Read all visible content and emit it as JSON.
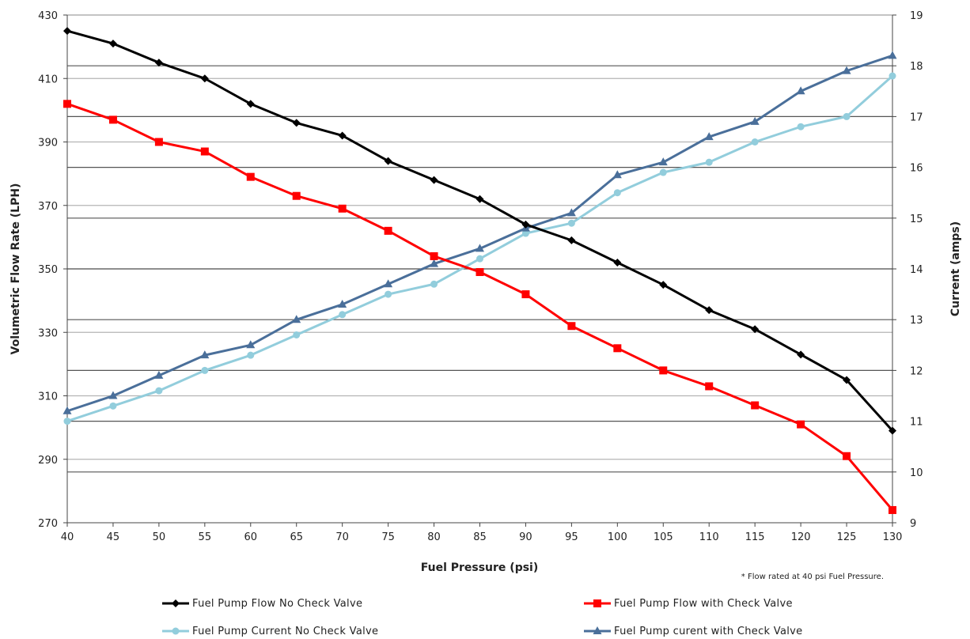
{
  "chart_data": {
    "type": "line",
    "xlabel": "Fuel Pressure (psi)",
    "ylabel_left": "Volumetric Flow Rate (LPH)",
    "ylabel_right": "Current (amps)",
    "xlim": [
      40,
      130
    ],
    "x_ticks": [
      40,
      45,
      50,
      55,
      60,
      65,
      70,
      75,
      80,
      85,
      90,
      95,
      100,
      105,
      110,
      115,
      120,
      125,
      130
    ],
    "ylim_left": [
      270,
      430
    ],
    "y_ticks_left": [
      270,
      290,
      310,
      330,
      350,
      370,
      390,
      410,
      430
    ],
    "ylim_right": [
      9,
      19
    ],
    "y_ticks_right": [
      9,
      10,
      11,
      12,
      13,
      14,
      15,
      16,
      17,
      18,
      19
    ],
    "grid": true,
    "legend_position": "bottom",
    "note": "* Flow rated at 40 psi Fuel Pressure.",
    "x": [
      40,
      45,
      50,
      55,
      60,
      65,
      70,
      75,
      80,
      85,
      90,
      95,
      100,
      105,
      110,
      115,
      120,
      125,
      130
    ],
    "series": [
      {
        "name": "Fuel Pump Flow No Check Valve",
        "axis": "left",
        "color": "#000000",
        "marker": "diamond",
        "values": [
          425,
          421,
          415,
          410,
          402,
          396,
          392,
          384,
          378,
          372,
          364,
          359,
          352,
          345,
          337,
          331,
          323,
          315,
          299
        ]
      },
      {
        "name": "Fuel Pump Flow with Check Valve",
        "axis": "left",
        "color": "#ff0000",
        "marker": "square",
        "values": [
          402,
          397,
          390,
          387,
          379,
          373,
          369,
          362,
          354,
          349,
          342,
          332,
          325,
          318,
          313,
          307,
          301,
          291,
          274
        ]
      },
      {
        "name": "Fuel Pump Current No Check Valve",
        "axis": "right",
        "color": "#92cddc",
        "marker": "circle",
        "values": [
          11.0,
          11.3,
          11.6,
          12.0,
          12.3,
          12.7,
          13.1,
          13.5,
          13.7,
          14.2,
          14.7,
          14.9,
          15.5,
          15.9,
          16.1,
          16.5,
          16.8,
          17.0,
          17.8
        ]
      },
      {
        "name": "Fuel Pump curent with Check Valve",
        "axis": "right",
        "color": "#4a6f9a",
        "marker": "triangle",
        "values": [
          11.2,
          11.5,
          11.9,
          12.3,
          12.5,
          13.0,
          13.3,
          13.7,
          14.1,
          14.4,
          14.8,
          15.1,
          15.85,
          16.1,
          16.6,
          16.9,
          17.5,
          17.9,
          18.2
        ]
      }
    ]
  }
}
